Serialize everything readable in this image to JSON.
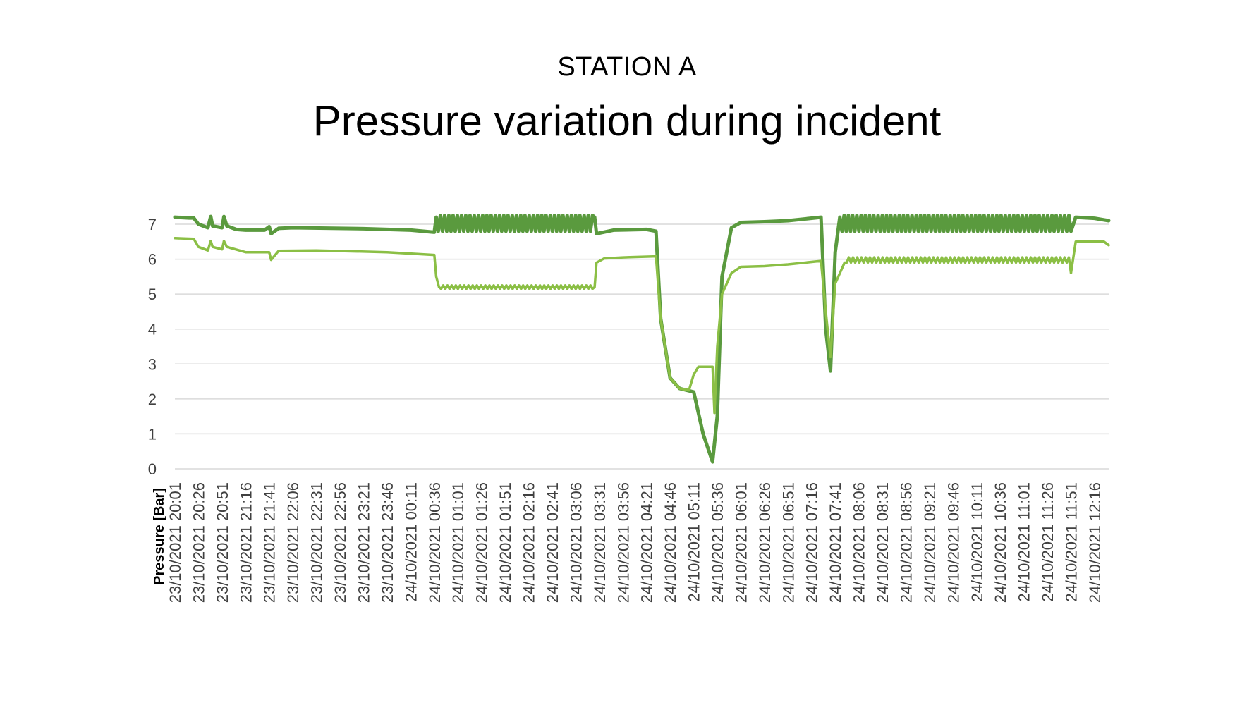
{
  "header": {
    "subtitle": "STATION A",
    "title": "Pressure variation during incident"
  },
  "chart_data": {
    "type": "line",
    "subtitle": "STATION A",
    "title": "Pressure variation during incident",
    "xlabel": "",
    "ylabel": "Pressure [Bar]",
    "ylim": [
      0,
      7
    ],
    "yticks": [
      0,
      1,
      2,
      3,
      4,
      5,
      6,
      7
    ],
    "grid": true,
    "legend": "none",
    "colors": {
      "series_dark": "#5a9a3e",
      "series_light": "#8bbf45",
      "grid": "#d9d9d9",
      "tick": "#404040"
    },
    "x_tick_labels": [
      "23/10/2021 20:01",
      "23/10/2021 20:26",
      "23/10/2021 20:51",
      "23/10/2021 21:16",
      "23/10/2021 21:41",
      "23/10/2021 22:06",
      "23/10/2021 22:31",
      "23/10/2021 22:56",
      "23/10/2021 23:21",
      "23/10/2021 23:46",
      "24/10/2021 00:11",
      "24/10/2021 00:36",
      "24/10/2021 01:01",
      "24/10/2021 01:26",
      "24/10/2021 01:51",
      "24/10/2021 02:16",
      "24/10/2021 02:41",
      "24/10/2021 03:06",
      "24/10/2021 03:31",
      "24/10/2021 03:56",
      "24/10/2021 04:21",
      "24/10/2021 04:46",
      "24/10/2021 05:11",
      "24/10/2021 05:36",
      "24/10/2021 06:01",
      "24/10/2021 06:26",
      "24/10/2021 06:51",
      "24/10/2021 07:16",
      "24/10/2021 07:41",
      "24/10/2021 08:06",
      "24/10/2021 08:31",
      "24/10/2021 08:56",
      "24/10/2021 09:21",
      "24/10/2021 09:46",
      "24/10/2021 10:11",
      "24/10/2021 10:36",
      "24/10/2021 11:01",
      "24/10/2021 11:26",
      "24/10/2021 11:51",
      "24/10/2021 12:16"
    ],
    "x_range": [
      "23/10/2021 20:01",
      "24/10/2021 12:31"
    ],
    "series": [
      {
        "role": "upper line (dark green, thick)",
        "color": "#5a9a3e",
        "points": [
          [
            "23/10/2021 20:01",
            7.2
          ],
          [
            "23/10/2021 20:16",
            7.18
          ],
          [
            "23/10/2021 20:21",
            7.18
          ],
          [
            "23/10/2021 20:26",
            7.0
          ],
          [
            "23/10/2021 20:36",
            6.9
          ],
          [
            "23/10/2021 20:39",
            7.22
          ],
          [
            "23/10/2021 20:41",
            6.95
          ],
          [
            "23/10/2021 20:51",
            6.9
          ],
          [
            "23/10/2021 20:53",
            7.22
          ],
          [
            "23/10/2021 20:56",
            6.95
          ],
          [
            "23/10/2021 21:06",
            6.85
          ],
          [
            "23/10/2021 21:16",
            6.83
          ],
          [
            "23/10/2021 21:36",
            6.83
          ],
          [
            "23/10/2021 21:41",
            6.93
          ],
          [
            "23/10/2021 21:43",
            6.73
          ],
          [
            "23/10/2021 21:51",
            6.88
          ],
          [
            "23/10/2021 22:06",
            6.9
          ],
          [
            "23/10/2021 23:21",
            6.87
          ],
          [
            "24/10/2021 00:11",
            6.83
          ],
          [
            "24/10/2021 00:36",
            6.77
          ],
          [
            "24/10/2021 00:38",
            7.2
          ],
          [
            "24/10/2021 01:46",
            "oscillating 6.8–7.25"
          ],
          [
            "24/10/2021 03:26",
            7.2
          ],
          [
            "24/10/2021 03:28",
            6.73
          ],
          [
            "24/10/2021 03:46",
            6.83
          ],
          [
            "24/10/2021 04:21",
            6.85
          ],
          [
            "24/10/2021 04:31",
            6.8
          ],
          [
            "24/10/2021 04:36",
            4.3
          ],
          [
            "24/10/2021 04:46",
            2.6
          ],
          [
            "24/10/2021 04:56",
            2.3
          ],
          [
            "24/10/2021 05:11",
            2.2
          ],
          [
            "24/10/2021 05:21",
            1.0
          ],
          [
            "24/10/2021 05:31",
            0.2
          ],
          [
            "24/10/2021 05:36",
            1.5
          ],
          [
            "24/10/2021 05:41",
            5.5
          ],
          [
            "24/10/2021 05:51",
            6.9
          ],
          [
            "24/10/2021 06:01",
            7.05
          ],
          [
            "24/10/2021 06:26",
            7.07
          ],
          [
            "24/10/2021 06:51",
            7.1
          ],
          [
            "24/10/2021 07:26",
            7.2
          ],
          [
            "24/10/2021 07:31",
            4.0
          ],
          [
            "24/10/2021 07:36",
            2.8
          ],
          [
            "24/10/2021 07:41",
            6.2
          ],
          [
            "24/10/2021 07:46",
            7.2
          ],
          [
            "24/10/2021 09:46",
            "oscillating 6.8–7.25"
          ],
          [
            "24/10/2021 11:51",
            6.8
          ],
          [
            "24/10/2021 11:56",
            7.2
          ],
          [
            "24/10/2021 12:16",
            7.17
          ],
          [
            "24/10/2021 12:31",
            7.1
          ]
        ]
      },
      {
        "role": "lower line (light green, thin)",
        "color": "#8bbf45",
        "points": [
          [
            "23/10/2021 20:01",
            6.6
          ],
          [
            "23/10/2021 20:21",
            6.58
          ],
          [
            "23/10/2021 20:26",
            6.35
          ],
          [
            "23/10/2021 20:36",
            6.25
          ],
          [
            "23/10/2021 20:39",
            6.52
          ],
          [
            "23/10/2021 20:41",
            6.35
          ],
          [
            "23/10/2021 20:51",
            6.28
          ],
          [
            "23/10/2021 20:53",
            6.52
          ],
          [
            "23/10/2021 20:56",
            6.35
          ],
          [
            "23/10/2021 21:16",
            6.2
          ],
          [
            "23/10/2021 21:41",
            6.2
          ],
          [
            "23/10/2021 21:43",
            5.98
          ],
          [
            "23/10/2021 21:51",
            6.24
          ],
          [
            "23/10/2021 22:31",
            6.25
          ],
          [
            "23/10/2021 23:46",
            6.2
          ],
          [
            "24/10/2021 00:36",
            6.12
          ],
          [
            "24/10/2021 00:38",
            5.5
          ],
          [
            "24/10/2021 00:41",
            5.2
          ],
          [
            "24/10/2021 02:16",
            "oscillating 5.15–5.25"
          ],
          [
            "24/10/2021 03:26",
            5.2
          ],
          [
            "24/10/2021 03:28",
            5.9
          ],
          [
            "24/10/2021 03:36",
            6.02
          ],
          [
            "24/10/2021 03:56",
            6.05
          ],
          [
            "24/10/2021 04:31",
            6.08
          ],
          [
            "24/10/2021 04:36",
            4.3
          ],
          [
            "24/10/2021 04:46",
            2.6
          ],
          [
            "24/10/2021 04:56",
            2.3
          ],
          [
            "24/10/2021 05:06",
            2.25
          ],
          [
            "24/10/2021 05:11",
            2.7
          ],
          [
            "24/10/2021 05:16",
            2.92
          ],
          [
            "24/10/2021 05:31",
            2.92
          ],
          [
            "24/10/2021 05:33",
            1.6
          ],
          [
            "24/10/2021 05:36",
            3.5
          ],
          [
            "24/10/2021 05:41",
            5.0
          ],
          [
            "24/10/2021 05:51",
            5.6
          ],
          [
            "24/10/2021 06:01",
            5.78
          ],
          [
            "24/10/2021 06:26",
            5.8
          ],
          [
            "24/10/2021 06:51",
            5.85
          ],
          [
            "24/10/2021 07:26",
            5.95
          ],
          [
            "24/10/2021 07:31",
            4.5
          ],
          [
            "24/10/2021 07:36",
            3.2
          ],
          [
            "24/10/2021 07:41",
            5.3
          ],
          [
            "24/10/2021 07:51",
            5.9
          ],
          [
            "24/10/2021 09:46",
            "oscillating 5.9–6.05"
          ],
          [
            "24/10/2021 11:51",
            5.6
          ],
          [
            "24/10/2021 11:56",
            6.5
          ],
          [
            "24/10/2021 12:26",
            6.5
          ],
          [
            "24/10/2021 12:31",
            6.4
          ]
        ]
      }
    ]
  }
}
